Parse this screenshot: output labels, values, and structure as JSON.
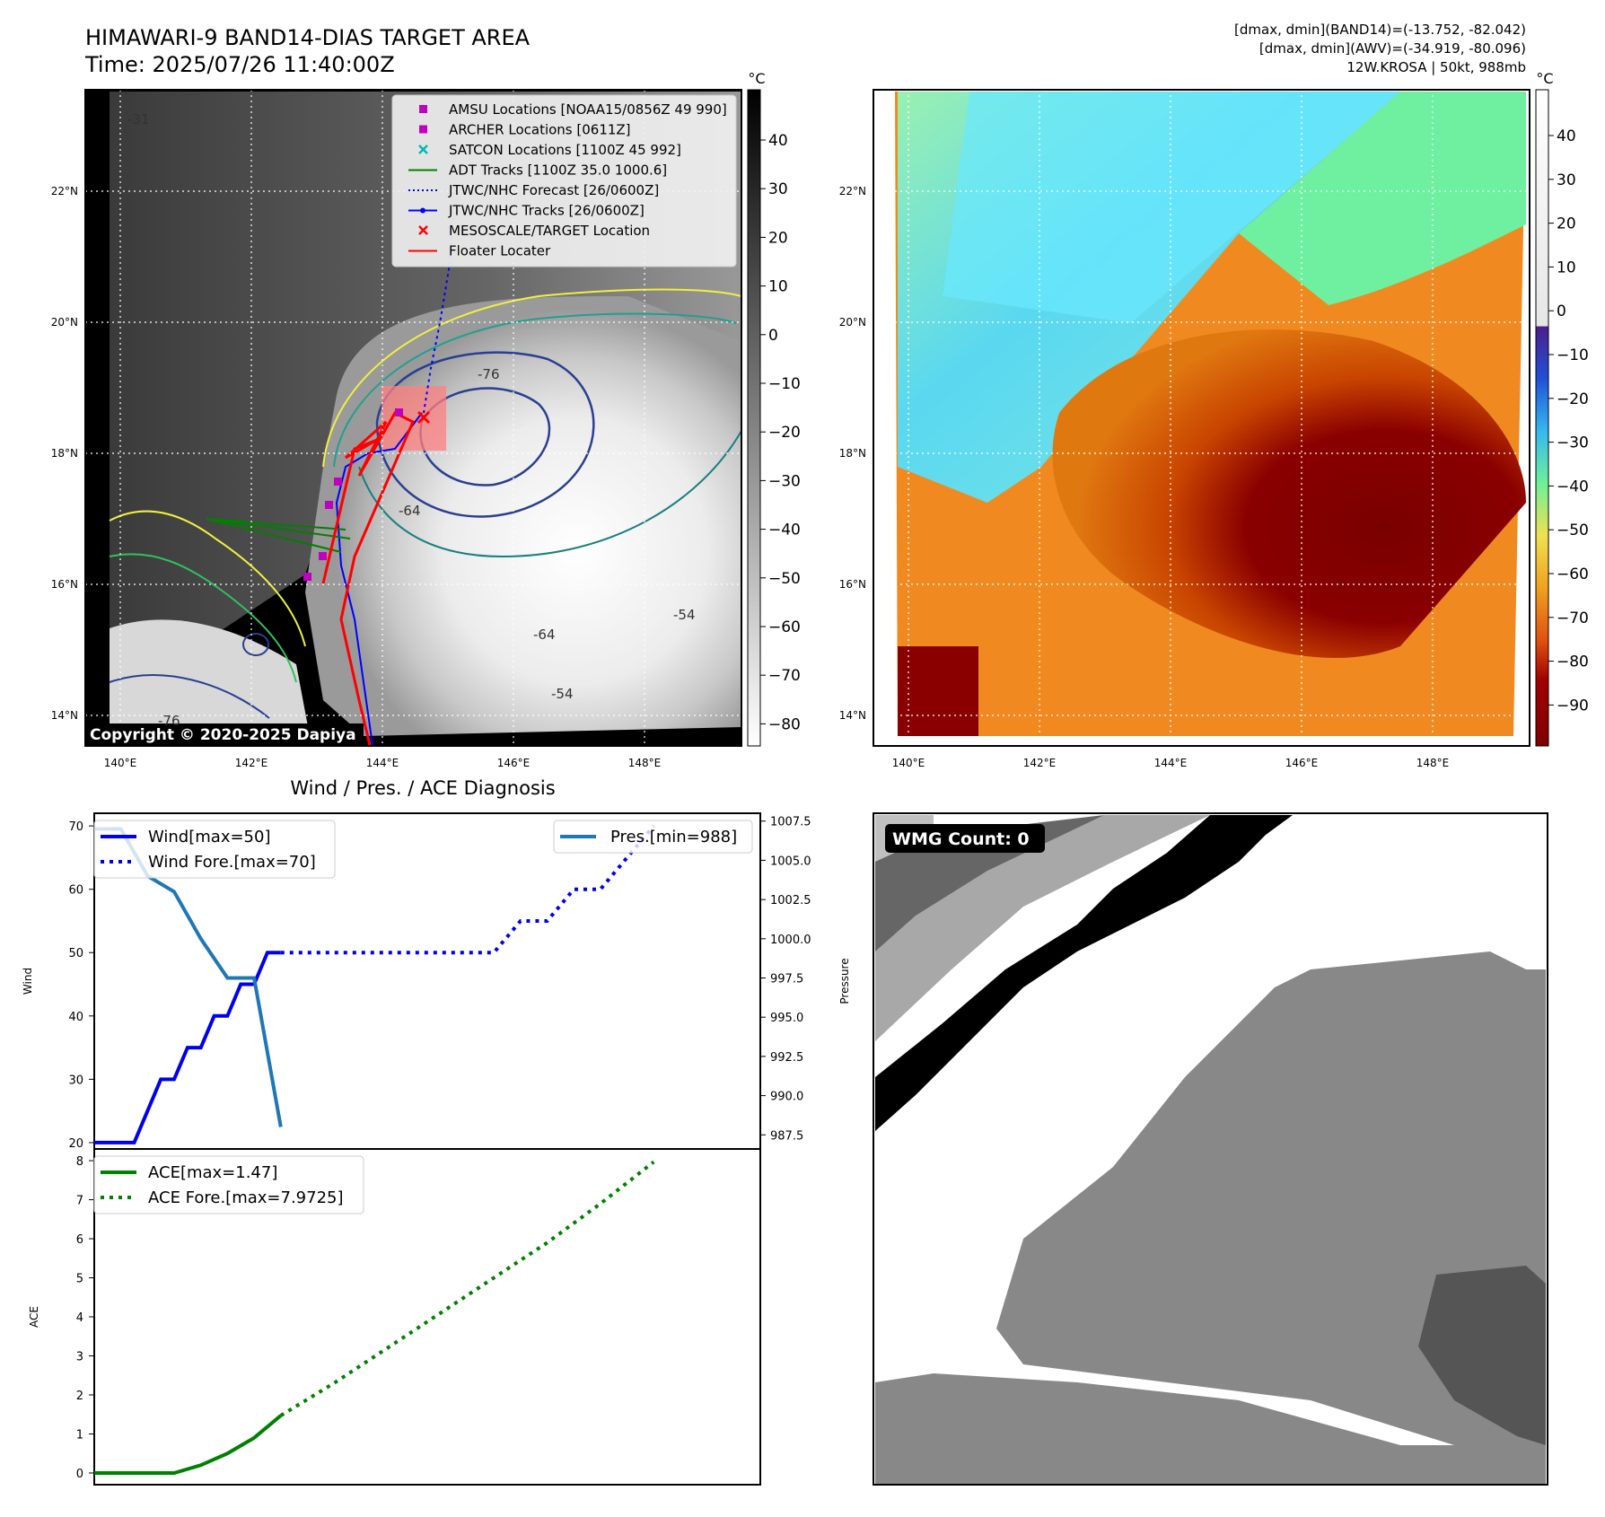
{
  "header": {
    "title_line1": "HIMAWARI-9 BAND14-DIAS TARGET AREA",
    "title_line2": "Time: 2025/07/26 11:40:00Z",
    "right_line1": "[dmax, dmin](BAND14)=(-13.752, -82.042)",
    "right_line2": "[dmax, dmin](AWV)=(-34.919, -80.096)",
    "right_line3": "12W.KROSA | 50kt, 988mb"
  },
  "map_axes": {
    "lon_ticks": [
      "140°E",
      "142°E",
      "144°E",
      "146°E",
      "148°E"
    ],
    "lat_ticks": [
      "14°N",
      "16°N",
      "18°N",
      "20°N",
      "22°N"
    ],
    "copyright": "Copyright © 2020-2025 Dapiya"
  },
  "colorbars": {
    "unit": "°C",
    "ir_ticks": [
      "40",
      "30",
      "20",
      "10",
      "0",
      "−10",
      "−20",
      "−30",
      "−40",
      "−50",
      "−60",
      "−70",
      "−80"
    ],
    "awv_ticks": [
      "40",
      "30",
      "20",
      "10",
      "0",
      "−10",
      "−20",
      "−30",
      "−40",
      "−50",
      "−60",
      "−70",
      "−80",
      "−90"
    ]
  },
  "map_legend": [
    {
      "label": "AMSU Locations [NOAA15/0856Z 49 990]",
      "marker": "square",
      "color": "#c000c0"
    },
    {
      "label": "ARCHER Locations [0611Z]",
      "marker": "square",
      "color": "#c000c0"
    },
    {
      "label": "SATCON Locations [1100Z 45 992]",
      "marker": "x",
      "color": "#00b8b8"
    },
    {
      "label": "ADT Tracks [1100Z 35.0 1000.6]",
      "marker": "line",
      "color": "#008000"
    },
    {
      "label": "JTWC/NHC Forecast [26/0600Z]",
      "marker": "dotted",
      "color": "#0000ff"
    },
    {
      "label": "JTWC/NHC Tracks [26/0600Z]",
      "marker": "line-dot",
      "color": "#0000ff"
    },
    {
      "label": "MESOSCALE/TARGET Location",
      "marker": "x",
      "color": "#ff0000"
    },
    {
      "label": "Floater Locater",
      "marker": "line",
      "color": "#ff0000"
    }
  ],
  "contour_labels": [
    "-76",
    "-64",
    "-54",
    "-64",
    "-54",
    "-31",
    "-76"
  ],
  "diag_title": "Wind / Pres. / ACE Diagnosis",
  "wmg_label": "WMG Count: 0",
  "chart_data": [
    {
      "type": "line",
      "title": "Wind / Pres. / ACE Diagnosis",
      "ylabel": "Wind",
      "y2label": "Pressure",
      "ylim": [
        19,
        72
      ],
      "y2lim": [
        986.6,
        1008
      ],
      "yticks": [
        20,
        30,
        40,
        50,
        60,
        70
      ],
      "y2ticks": [
        "987.5",
        "990.0",
        "992.5",
        "995.0",
        "997.5",
        "1000.0",
        "1002.5",
        "1005.0",
        "1007.5"
      ],
      "xlim": [
        0,
        25
      ],
      "series": [
        {
          "name": "Wind[max=50]",
          "axis": "left",
          "style": "solid",
          "color": "#0000ee",
          "x": [
            0,
            1.5,
            2.5,
            3,
            3.5,
            4,
            4.5,
            5,
            5.5,
            6,
            6.5,
            7
          ],
          "y": [
            20,
            20,
            30,
            30,
            35,
            35,
            40,
            40,
            45,
            45,
            50,
            50
          ]
        },
        {
          "name": "Wind Fore.[max=70]",
          "axis": "left",
          "style": "dotted",
          "color": "#0000ee",
          "x": [
            7,
            9,
            12,
            15,
            16,
            17,
            18,
            19,
            20,
            21
          ],
          "y": [
            50,
            50,
            50,
            50,
            55,
            55,
            60,
            60,
            65,
            70
          ]
        },
        {
          "name": "Pres.[min=988]",
          "axis": "right",
          "color": "#1f77b4",
          "x": [
            0,
            1,
            2,
            3,
            4,
            5,
            6,
            7
          ],
          "y": [
            1007,
            1007,
            1004,
            1003,
            1000,
            997.5,
            997.5,
            988
          ]
        }
      ]
    },
    {
      "type": "line",
      "ylabel": "ACE",
      "ylim": [
        -0.3,
        8.3
      ],
      "yticks": [
        0,
        1,
        2,
        3,
        4,
        5,
        6,
        7,
        8
      ],
      "xlim": [
        0,
        25
      ],
      "series": [
        {
          "name": "ACE[max=1.47]",
          "style": "solid",
          "color": "#008000",
          "x": [
            0,
            1,
            2,
            3,
            4,
            5,
            6,
            7
          ],
          "y": [
            0,
            0,
            0,
            0,
            0.2,
            0.5,
            0.9,
            1.47
          ]
        },
        {
          "name": "ACE Fore.[max=7.9725]",
          "style": "dotted",
          "color": "#008000",
          "x": [
            7,
            9,
            11,
            13,
            15,
            17,
            19,
            21
          ],
          "y": [
            1.47,
            2.3,
            3.2,
            4.1,
            5.0,
            5.9,
            6.9,
            7.97
          ]
        }
      ]
    }
  ]
}
